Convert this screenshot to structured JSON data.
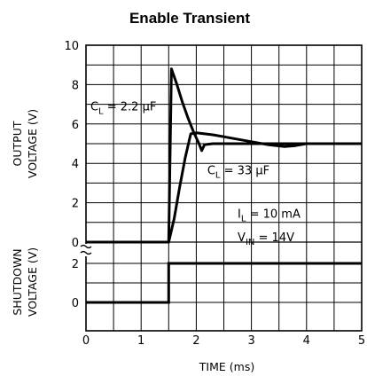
{
  "chart_data": {
    "type": "line",
    "title": "Enable Transient",
    "xlabel": "TIME (ms)",
    "xlim": [
      0,
      5
    ],
    "x_ticks": [
      "0",
      "1",
      "2",
      "3",
      "4",
      "5"
    ],
    "grid": true,
    "panels": [
      {
        "id": "output",
        "ylabel_lines": [
          "OUTPUT",
          "VOLTAGE (V)"
        ],
        "ylim": [
          0,
          10
        ],
        "y_ticks": [
          "0",
          "2",
          "4",
          "6",
          "8",
          "10"
        ],
        "series": [
          {
            "name": "C_L = 2.2 µF",
            "x": [
              0,
              1.5,
              1.55,
              1.65,
              1.75,
              1.85,
              1.95,
              2.05,
              2.1,
              2.15,
              2.3,
              2.6,
              3.0,
              3.4,
              3.7,
              3.85,
              5.0
            ],
            "y": [
              0,
              0,
              8.8,
              8.0,
              7.1,
              6.3,
              5.6,
              5.0,
              4.65,
              4.95,
              5.0,
              5.0,
              5.0,
              5.0,
              5.0,
              5.0,
              5.0
            ]
          },
          {
            "name": "C_L = 33 µF",
            "x": [
              0,
              1.5,
              1.6,
              1.7,
              1.8,
              1.9,
              2.0,
              2.3,
              2.6,
              3.0,
              3.3,
              3.6,
              3.8,
              4.0,
              5.0
            ],
            "y": [
              0,
              0,
              1.2,
              2.8,
              4.3,
              5.5,
              5.55,
              5.45,
              5.3,
              5.1,
              4.95,
              4.85,
              4.9,
              5.0,
              5.0
            ]
          }
        ],
        "annotations": [
          {
            "label": "C",
            "sub": "L",
            "rest": " = 2.2 µF",
            "x": 0.08,
            "y": 6.7
          },
          {
            "label": "C",
            "sub": "L",
            "rest": " = 33 µF",
            "x": 2.2,
            "y": 3.45
          },
          {
            "label": "I",
            "sub": "L",
            "rest": "  =  10 mA",
            "x": 2.75,
            "y": 1.25
          },
          {
            "label": "V",
            "sub": "IN",
            "rest": "  =  14V",
            "x": 2.75,
            "y": 0.05
          }
        ]
      },
      {
        "id": "shutdown",
        "ylabel_lines": [
          "SHUTDOWN",
          "VOLTAGE (V)"
        ],
        "ylim": [
          -0.5,
          2.5
        ],
        "y_ticks": [
          "0",
          "2"
        ],
        "series": [
          {
            "name": "",
            "x": [
              0,
              1.5,
              1.5,
              5.0
            ],
            "y": [
              0,
              0,
              2,
              2
            ]
          }
        ]
      }
    ]
  }
}
